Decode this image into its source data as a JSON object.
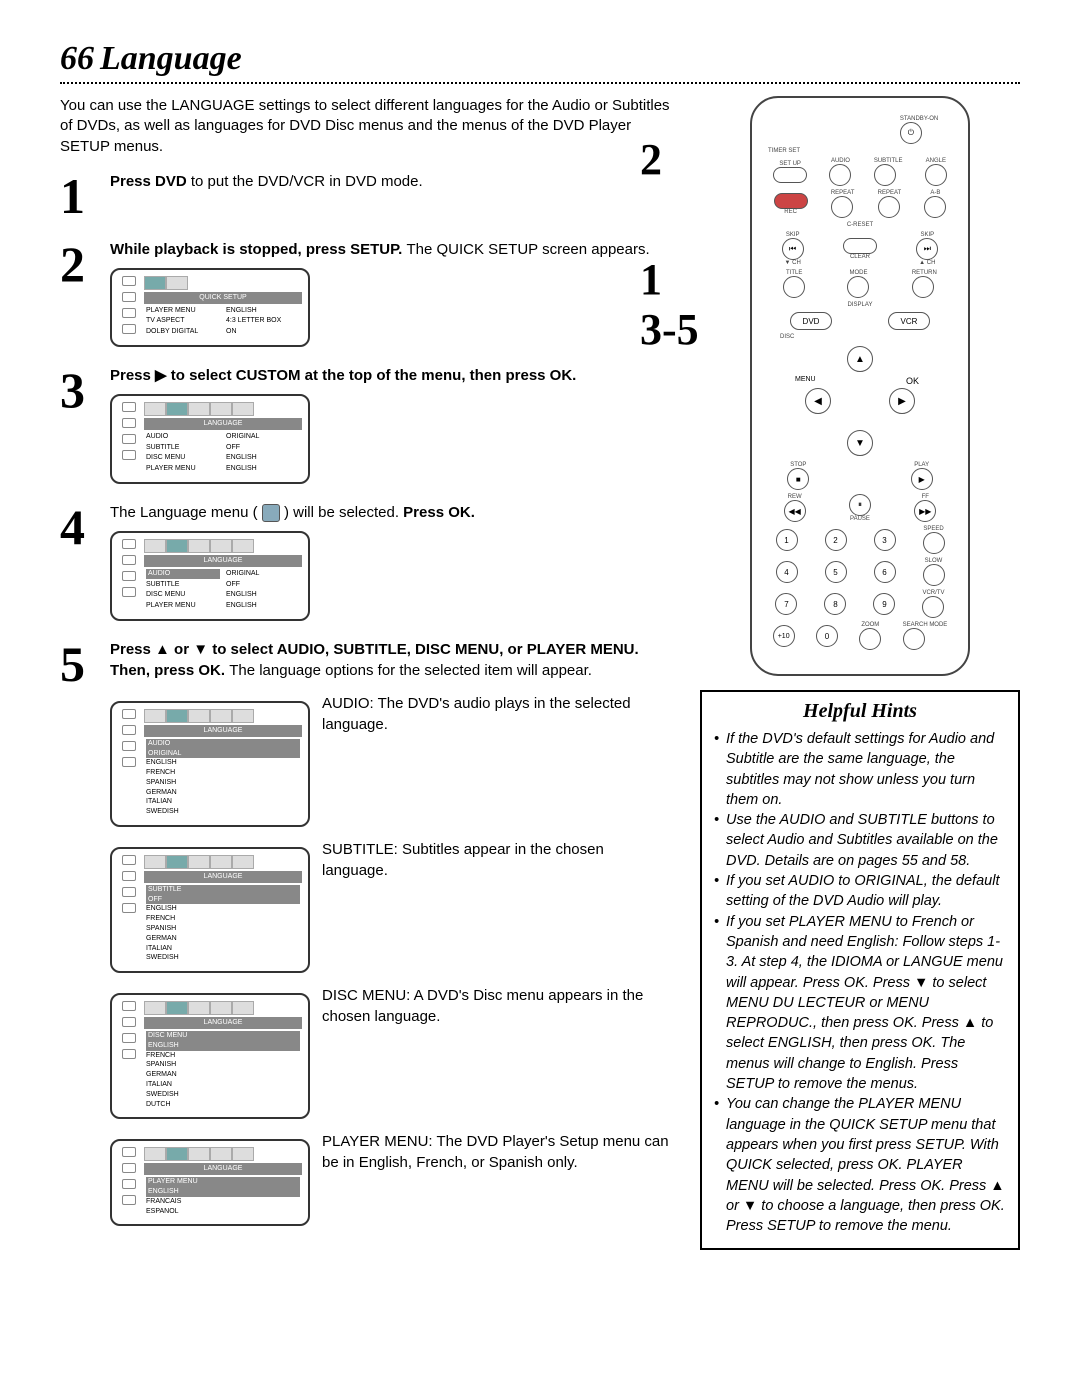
{
  "page_number": "66",
  "title": "Language",
  "intro": "You can use the LANGUAGE settings to select different languages for the Audio or Subtitles of DVDs, as well as languages for DVD Disc menus and the menus of the DVD Player SETUP menus.",
  "steps": {
    "s1": {
      "num": "1",
      "text_a": "Press DVD ",
      "text_b": "to put the DVD/VCR in DVD mode."
    },
    "s2": {
      "num": "2",
      "text_a": "While playback is stopped, press SETUP. ",
      "text_b": "The QUICK SETUP screen appears.",
      "screen": {
        "title": "QUICK SETUP",
        "rows": [
          [
            "PLAYER MENU",
            "ENGLISH"
          ],
          [
            "TV ASPECT",
            "4:3 LETTER BOX"
          ],
          [
            "DOLBY DIGITAL",
            "ON"
          ]
        ]
      }
    },
    "s3": {
      "num": "3",
      "text_a": "Press ▶ to select CUSTOM at the top of the menu, then press OK.",
      "screen": {
        "title": "LANGUAGE",
        "rows": [
          [
            "AUDIO",
            "ORIGINAL"
          ],
          [
            "SUBTITLE",
            "OFF"
          ],
          [
            "DISC MENU",
            "ENGLISH"
          ],
          [
            "PLAYER MENU",
            "ENGLISH"
          ]
        ]
      }
    },
    "s4": {
      "num": "4",
      "text_a": "The Language menu ( ",
      "icon_label": "globe",
      "text_b": " ) will be selected. ",
      "text_c": "Press OK.",
      "screen": {
        "title": "LANGUAGE",
        "rows": [
          [
            "AUDIO",
            "ORIGINAL"
          ],
          [
            "SUBTITLE",
            "OFF"
          ],
          [
            "DISC MENU",
            "ENGLISH"
          ],
          [
            "PLAYER MENU",
            "ENGLISH"
          ]
        ],
        "selected_row": "AUDIO"
      }
    },
    "s5": {
      "num": "5",
      "text_a": "Press ▲ or ▼ to select AUDIO, SUBTITLE, DISC MENU, or PLAYER MENU. Then, press OK. ",
      "text_b": "The language options for the selected item will appear.",
      "items": [
        {
          "key": "audio",
          "desc": "AUDIO: The DVD's audio plays in the selected language.",
          "screen": {
            "title": "LANGUAGE",
            "header": "AUDIO",
            "sel": "ORIGINAL",
            "list": [
              "ENGLISH",
              "FRENCH",
              "SPANISH",
              "GERMAN",
              "ITALIAN",
              "SWEDISH"
            ]
          }
        },
        {
          "key": "subtitle",
          "desc": "SUBTITLE: Subtitles appear in the chosen language.",
          "screen": {
            "title": "LANGUAGE",
            "header": "SUBTITLE",
            "sel": "OFF",
            "list": [
              "ENGLISH",
              "FRENCH",
              "SPANISH",
              "GERMAN",
              "ITALIAN",
              "SWEDISH"
            ]
          }
        },
        {
          "key": "discmenu",
          "desc": "DISC MENU: A DVD's Disc menu appears in the chosen language.",
          "screen": {
            "title": "LANGUAGE",
            "header": "DISC MENU",
            "sel": "ENGLISH",
            "list": [
              "FRENCH",
              "SPANISH",
              "GERMAN",
              "ITALIAN",
              "SWEDISH",
              "DUTCH"
            ]
          }
        },
        {
          "key": "playermenu",
          "desc": "PLAYER MENU: The DVD Player's Setup menu can be in English, French, or Spanish only.",
          "screen": {
            "title": "LANGUAGE",
            "header": "PLAYER MENU",
            "sel": "ENGLISH",
            "list": [
              "FRANCAIS",
              "ESPANOL"
            ]
          }
        }
      ]
    }
  },
  "remote_callouts": {
    "c1": "1",
    "c2": "2",
    "c35": "3-5"
  },
  "remote_labels": {
    "standby": "STANDBY-ON",
    "timer": "TIMER SET",
    "setup": "SET UP",
    "audio": "AUDIO",
    "subtitle": "SUBTITLE",
    "angle": "ANGLE",
    "rec": "REC",
    "repeat": "REPEAT",
    "repeat2": "REPEAT",
    "ab": "A-B",
    "skipl": "SKIP",
    "clear": "CLEAR",
    "skipr": "SKIP",
    "title": "TITLE",
    "mode": "MODE",
    "return": "RETURN",
    "display": "DISPLAY",
    "dvd": "DVD",
    "vcr": "VCR",
    "disc": "DISC",
    "menu": "MENU",
    "ok": "OK",
    "stop": "STOP",
    "play": "PLAY",
    "rew": "REW",
    "pause": "PAUSE",
    "ff": "FF",
    "speed": "SPEED",
    "slow": "SLOW",
    "vcrtv": "VCR/TV",
    "zoom": "ZOOM",
    "search": "SEARCH MODE",
    "plus10": "+10",
    "creset": "C-RESET",
    "ach": "▲ CH",
    "vch": "▼ CH"
  },
  "hints": {
    "title": "Helpful Hints",
    "items": [
      "If the DVD's default settings for Audio and Subtitle are the same language, the subtitles may not show unless you turn them on.",
      "Use the AUDIO and SUBTITLE buttons to select Audio and Subtitles available on the DVD. Details are on pages 55 and 58.",
      "If you set AUDIO to ORIGINAL, the default setting of the DVD Audio will play.",
      "If you set PLAYER MENU to French or Spanish and need English: Follow steps 1-3. At step 4, the IDIOMA or LANGUE menu will appear. Press OK. Press ▼ to select MENU DU LECTEUR or MENU REPRODUC., then press OK. Press ▲ to select ENGLISH, then press OK. The menus will change to English. Press SETUP to remove the menus.",
      "You can change the PLAYER MENU language in the QUICK SETUP menu that appears when you first press SETUP. With QUICK selected, press OK. PLAYER MENU will be selected. Press OK. Press ▲ or ▼ to choose a language, then press OK. Press SETUP to remove the menu."
    ]
  },
  "colors": {
    "screen_border": "#333",
    "tab_active": "#7aa",
    "menu_bar": "#888"
  }
}
